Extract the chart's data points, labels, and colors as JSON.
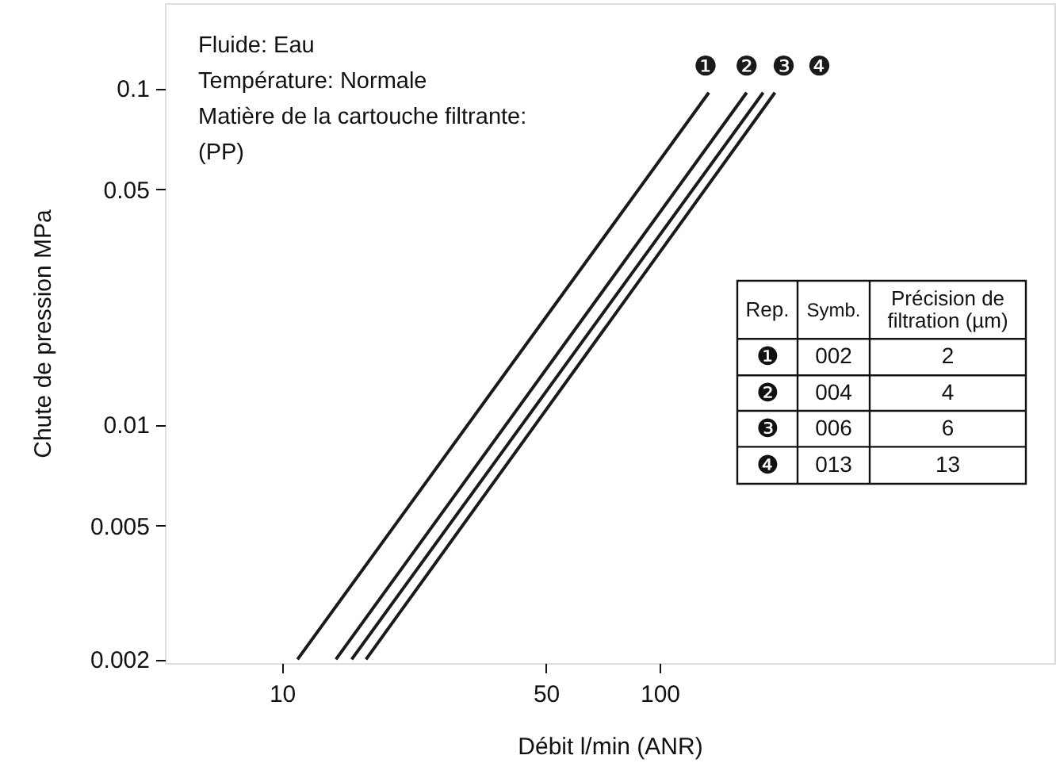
{
  "chart_data": {
    "type": "line",
    "xlabel": "Débit  l/min (ANR)",
    "ylabel": "Chute de pression  MPa",
    "log": "xy",
    "xlim": [
      4.9,
      1110
    ],
    "xticks": [
      10,
      50,
      100
    ],
    "ylim": [
      0.00195,
      0.179
    ],
    "yticks": [
      0.002,
      0.005,
      0.01,
      0.05,
      0.1
    ],
    "grid": false,
    "legend": false,
    "marker": "none",
    "line_style": "solid",
    "series": [
      {
        "name": "❶",
        "color": "#1a1a1a",
        "x": [
          11.0,
          135
        ],
        "values": [
          0.002,
          0.097
        ]
      },
      {
        "name": "❷",
        "color": "#1a1a1a",
        "x": [
          13.9,
          170
        ],
        "values": [
          0.002,
          0.097
        ]
      },
      {
        "name": "❸",
        "color": "#1a1a1a",
        "x": [
          15.3,
          188
        ],
        "values": [
          0.002,
          0.097
        ]
      },
      {
        "name": "❹",
        "color": "#1a1a1a",
        "x": [
          16.7,
          202
        ],
        "values": [
          0.002,
          0.097
        ]
      }
    ],
    "annotations": [
      "Fluide: Eau",
      "Température: Normale",
      "Matière de la cartouche filtrante:",
      "(PP)",
      "Rep.",
      "Symb.",
      "Précision de\nfiltration (µm)",
      "002",
      "2",
      "004",
      "4",
      "006",
      "6",
      "013",
      "13"
    ]
  }
}
